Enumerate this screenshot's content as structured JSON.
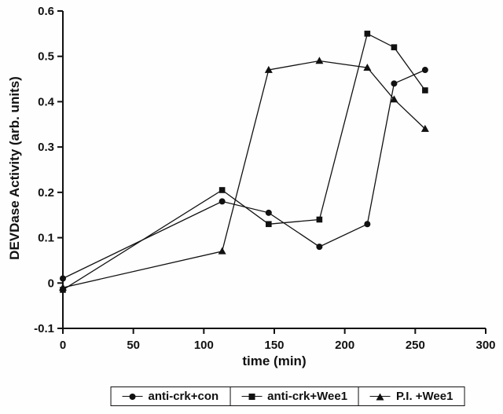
{
  "chart_data": {
    "type": "line",
    "title": "",
    "xlabel": "time (min)",
    "ylabel": "DEVDase Activity (arb. units)",
    "xlim": [
      0,
      300
    ],
    "ylim": [
      -0.1,
      0.6
    ],
    "xticks": [
      0,
      50,
      100,
      150,
      200,
      250,
      300
    ],
    "yticks": [
      -0.1,
      0,
      0.1,
      0.2,
      0.3,
      0.4,
      0.5,
      0.6
    ],
    "x_tick_labels": [
      "0",
      "50",
      "100",
      "150",
      "200",
      "250",
      "300"
    ],
    "y_tick_labels": [
      "-0.1",
      "0",
      "0.1",
      "0.2",
      "0.3",
      "0.4",
      "0.5",
      "0.6"
    ],
    "grid": false,
    "legend_position": "bottom",
    "colors": {
      "line": "#111111",
      "marker": "#111111",
      "axis": "#111111",
      "background": "#ffffff"
    },
    "x": [
      0,
      113,
      146,
      182,
      216,
      235,
      257
    ],
    "series": [
      {
        "name": "anti-crk+con",
        "marker": "circle",
        "values": [
          0.01,
          0.18,
          0.155,
          0.08,
          0.13,
          0.44,
          0.47
        ]
      },
      {
        "name": "anti-crk+Wee1",
        "marker": "square",
        "values": [
          -0.015,
          0.205,
          0.13,
          0.14,
          0.55,
          0.52,
          0.425
        ]
      },
      {
        "name": "P.I. +Wee1",
        "marker": "triangle",
        "values": [
          -0.01,
          0.07,
          0.47,
          0.49,
          0.475,
          0.405,
          0.34
        ]
      }
    ]
  }
}
